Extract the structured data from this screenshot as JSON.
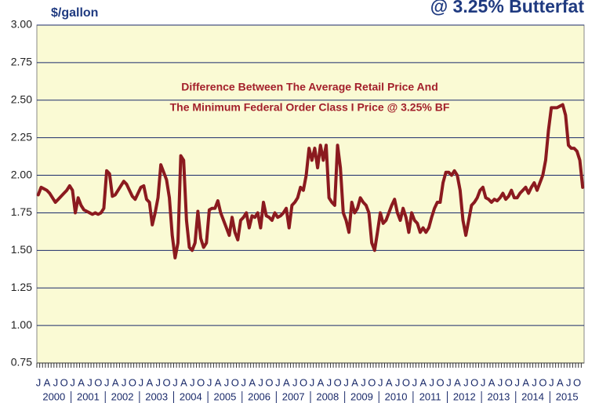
{
  "chart_data": {
    "type": "line",
    "title": "@ 3.25% Butterfat",
    "y_label": "$/gallon",
    "annotation": [
      "Difference Between The Average Retail Price And",
      "The Minimum Federal Order Class I Price @ 3.25% BF"
    ],
    "categories": [
      "J",
      null,
      null,
      "A",
      null,
      null,
      "J",
      null,
      null,
      "O",
      null,
      null,
      "J",
      null,
      null,
      "A",
      null,
      null,
      "J",
      null,
      null,
      "O",
      null,
      null,
      "J",
      null,
      null,
      "A",
      null,
      null,
      "J",
      null,
      null,
      "O",
      null,
      null,
      "J",
      null,
      null,
      "A",
      null,
      null,
      "J",
      null,
      null,
      "O",
      null,
      null,
      "J",
      null,
      null,
      "A",
      null,
      null,
      "J",
      null,
      null,
      "O",
      null,
      null,
      "J",
      null,
      null,
      "A",
      null,
      null,
      "J",
      null,
      null,
      "O",
      null,
      null,
      "J",
      null,
      null,
      "A",
      null,
      null,
      "J",
      null,
      null,
      "O",
      null,
      null,
      "J",
      null,
      null,
      "A",
      null,
      null,
      "J",
      null,
      null,
      "O",
      null,
      null,
      "J",
      null,
      null,
      "A",
      null,
      null,
      "J",
      null,
      null,
      "O",
      null,
      null,
      "J",
      null,
      null,
      "A",
      null,
      null,
      "J",
      null,
      null,
      "O",
      null,
      null,
      "J",
      null,
      null,
      "A",
      null,
      null,
      "J",
      null,
      null,
      "O",
      null,
      null,
      "J",
      null,
      null,
      "A",
      null,
      null,
      "J",
      null,
      null,
      "O",
      null,
      null,
      "J",
      null,
      null,
      "A",
      null,
      null,
      "J",
      null,
      null,
      "O",
      null,
      null,
      "J",
      null,
      null,
      "A",
      null,
      null,
      "J",
      null,
      null,
      "O",
      null,
      null,
      "J",
      null,
      null,
      "A",
      null,
      null,
      "J",
      null,
      null,
      "O",
      null,
      null,
      "J",
      null,
      null,
      "A",
      null,
      null,
      "J",
      null,
      null,
      "O",
      null,
      null
    ],
    "years": [
      "2000",
      "2001",
      "2002",
      "2003",
      "2004",
      "2005",
      "2006",
      "2007",
      "2008",
      "2009",
      "2010",
      "2011",
      "2012",
      "2013",
      "2014",
      "2015"
    ],
    "series": [
      {
        "color": "#8b1a1f",
        "values": [
          1.87,
          1.92,
          1.91,
          1.9,
          1.88,
          1.85,
          1.82,
          1.84,
          1.86,
          1.88,
          1.9,
          1.93,
          1.9,
          1.75,
          1.85,
          1.8,
          1.77,
          1.76,
          1.75,
          1.74,
          1.75,
          1.74,
          1.75,
          1.78,
          2.03,
          2.01,
          1.86,
          1.87,
          1.9,
          1.93,
          1.96,
          1.94,
          1.9,
          1.86,
          1.84,
          1.88,
          1.92,
          1.93,
          1.84,
          1.82,
          1.67,
          1.75,
          1.85,
          2.07,
          2.02,
          1.97,
          1.85,
          1.6,
          1.45,
          1.55,
          2.13,
          2.1,
          1.7,
          1.52,
          1.5,
          1.55,
          1.76,
          1.58,
          1.52,
          1.55,
          1.77,
          1.78,
          1.78,
          1.83,
          1.75,
          1.7,
          1.65,
          1.6,
          1.72,
          1.62,
          1.57,
          1.7,
          1.72,
          1.75,
          1.65,
          1.73,
          1.72,
          1.75,
          1.65,
          1.82,
          1.73,
          1.72,
          1.7,
          1.75,
          1.72,
          1.73,
          1.75,
          1.78,
          1.65,
          1.8,
          1.82,
          1.85,
          1.92,
          1.9,
          2.0,
          2.18,
          2.1,
          2.18,
          2.05,
          2.2,
          2.1,
          2.2,
          1.85,
          1.82,
          1.8,
          2.2,
          2.05,
          1.75,
          1.7,
          1.62,
          1.82,
          1.75,
          1.78,
          1.85,
          1.82,
          1.8,
          1.75,
          1.55,
          1.5,
          1.62,
          1.75,
          1.68,
          1.7,
          1.75,
          1.8,
          1.84,
          1.75,
          1.7,
          1.78,
          1.72,
          1.62,
          1.75,
          1.7,
          1.68,
          1.62,
          1.65,
          1.62,
          1.65,
          1.72,
          1.78,
          1.82,
          1.82,
          1.95,
          2.02,
          2.02,
          2.0,
          2.03,
          2.0,
          1.9,
          1.7,
          1.6,
          1.7,
          1.8,
          1.82,
          1.85,
          1.9,
          1.92,
          1.85,
          1.84,
          1.82,
          1.84,
          1.83,
          1.85,
          1.88,
          1.84,
          1.86,
          1.9,
          1.85,
          1.85,
          1.88,
          1.9,
          1.92,
          1.88,
          1.92,
          1.95,
          1.9,
          1.95,
          2.0,
          2.1,
          2.3,
          2.45,
          2.45,
          2.45,
          2.46,
          2.47,
          2.4,
          2.2,
          2.18,
          2.18,
          2.16,
          2.1,
          1.92
        ]
      }
    ],
    "ylim": [
      0.75,
      3.0
    ],
    "yticks": [
      0.75,
      {
        "value": 1.0,
        "label": "1.00"
      },
      1.25,
      {
        "value": 1.5,
        "label": "1.50"
      },
      1.75,
      {
        "value": 2.0,
        "label": "2.00"
      },
      2.25,
      {
        "value": 2.5,
        "label": "2.50"
      },
      2.75,
      {
        "value": 3.0,
        "label": "3.00"
      }
    ],
    "grid": true,
    "plot_background": "#fafad4",
    "annotation_color": "#a3202b"
  }
}
